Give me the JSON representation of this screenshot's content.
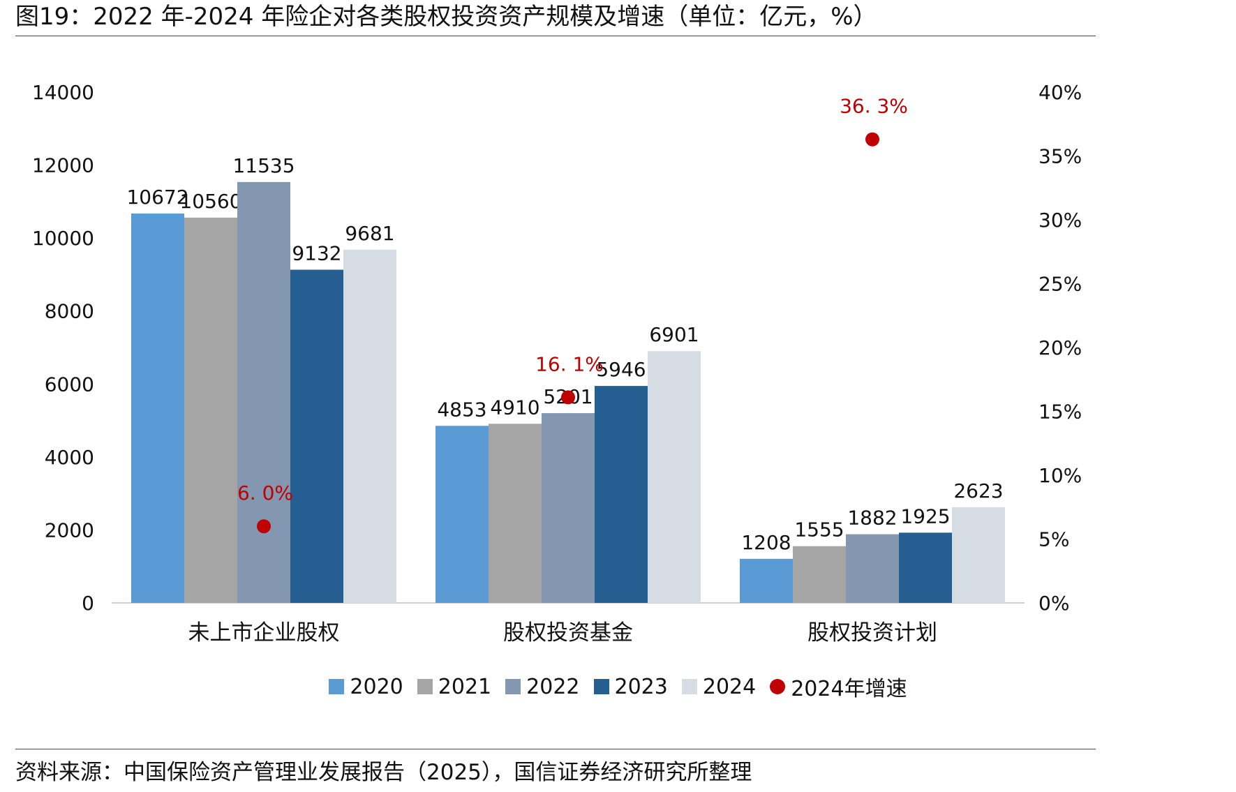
{
  "header": {
    "title": "图19：2022 年-2024 年险企对各类股权投资资产规模及增速（单位：亿元，%）"
  },
  "footer": {
    "source": "资料来源：中国保险资产管理业发展报告（2025），国信证券经济研究所整理"
  },
  "colors": {
    "2020": "#5B9BD5",
    "2021": "#A5A5A5",
    "2022": "#8497B0",
    "2023": "#255E91",
    "2024": "#D6DCE4",
    "growth": "#C00000"
  },
  "chart_data": {
    "type": "bar",
    "categories": [
      "未上市企业股权",
      "股权投资基金",
      "股权投资计划"
    ],
    "series": [
      {
        "name": "2020",
        "values": [
          10672,
          4853,
          1208
        ]
      },
      {
        "name": "2021",
        "values": [
          10560,
          4910,
          1555
        ]
      },
      {
        "name": "2022",
        "values": [
          11535,
          5201,
          1882
        ]
      },
      {
        "name": "2023",
        "values": [
          9132,
          5946,
          1925
        ]
      },
      {
        "name": "2024",
        "values": [
          9681,
          6901,
          2623
        ]
      }
    ],
    "secondary_series": {
      "name": "2024年增速",
      "type": "scatter",
      "values": [
        6.0,
        16.1,
        36.3
      ],
      "labels": [
        "6. 0%",
        "16. 1%",
        "36. 3%"
      ]
    },
    "y_left": {
      "range": [
        0,
        14000
      ],
      "ticks": [
        "0",
        "2000",
        "4000",
        "6000",
        "8000",
        "10000",
        "12000",
        "14000"
      ]
    },
    "y_right": {
      "range": [
        0,
        40
      ],
      "ticks": [
        "0%",
        "5%",
        "10%",
        "15%",
        "20%",
        "25%",
        "30%",
        "35%",
        "40%"
      ]
    },
    "legend_position": "bottom",
    "grid": false
  }
}
